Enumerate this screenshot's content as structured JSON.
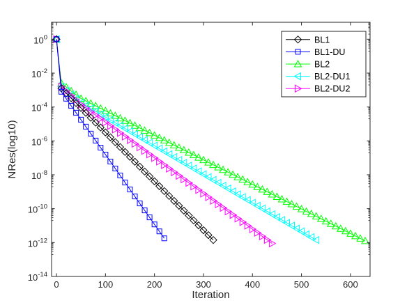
{
  "chart_data": {
    "type": "line",
    "title": "",
    "xlabel": "Iteration",
    "ylabel": "NRes(log10)",
    "xlim": [
      -10,
      640
    ],
    "ylim_log10": [
      -14,
      1
    ],
    "y_scale": "log",
    "grid": false,
    "legend_position": "top-right",
    "x_ticks": [
      {
        "value": 0,
        "label": "0"
      },
      {
        "value": 100,
        "label": "100"
      },
      {
        "value": 200,
        "label": "200"
      },
      {
        "value": 300,
        "label": "300"
      },
      {
        "value": 400,
        "label": "400"
      },
      {
        "value": 500,
        "label": "500"
      },
      {
        "value": 600,
        "label": "600"
      }
    ],
    "y_ticks": [
      {
        "exp": 0,
        "base": "10",
        "sup": "0"
      },
      {
        "exp": -2,
        "base": "10",
        "sup": "-2"
      },
      {
        "exp": -4,
        "base": "10",
        "sup": "-4"
      },
      {
        "exp": -6,
        "base": "10",
        "sup": "-6"
      },
      {
        "exp": -8,
        "base": "10",
        "sup": "-8"
      },
      {
        "exp": -10,
        "base": "10",
        "sup": "-10"
      },
      {
        "exp": -12,
        "base": "10",
        "sup": "-12"
      },
      {
        "exp": -14,
        "base": "10",
        "sup": "-14"
      }
    ],
    "series": [
      {
        "name": "BL1",
        "color": "#000000",
        "marker": "diamond",
        "marker_every": 10,
        "points": [
          [
            0,
            0
          ],
          [
            10,
            -2.9
          ],
          [
            320,
            -11.85
          ]
        ]
      },
      {
        "name": "BL1-DU",
        "color": "#0000ff",
        "marker": "square",
        "marker_every": 10,
        "points": [
          [
            0,
            0
          ],
          [
            10,
            -3.1
          ],
          [
            220,
            -11.75
          ]
        ]
      },
      {
        "name": "BL2",
        "color": "#00ff00",
        "marker": "triangle-up",
        "marker_every": 10,
        "points": [
          [
            0,
            0
          ],
          [
            10,
            -2.6
          ],
          [
            50,
            -3.5
          ],
          [
            630,
            -11.9
          ]
        ]
      },
      {
        "name": "BL2-DU1",
        "color": "#00ffff",
        "marker": "triangle-left",
        "marker_every": 10,
        "points": [
          [
            0,
            0
          ],
          [
            10,
            -2.8
          ],
          [
            50,
            -3.75
          ],
          [
            530,
            -11.85
          ]
        ]
      },
      {
        "name": "BL2-DU2",
        "color": "#ff00ff",
        "marker": "triangle-right",
        "marker_every": 10,
        "points": [
          [
            0,
            0
          ],
          [
            10,
            -2.8
          ],
          [
            50,
            -3.85
          ],
          [
            440,
            -12.05
          ]
        ]
      }
    ]
  }
}
